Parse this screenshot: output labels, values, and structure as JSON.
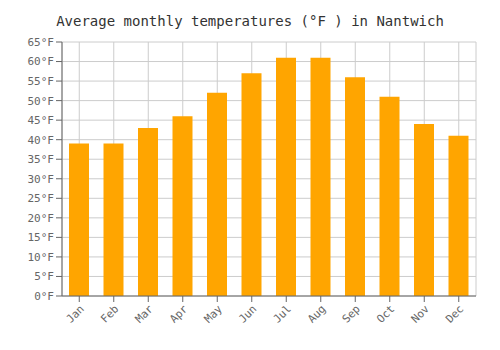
{
  "chart_data": {
    "type": "bar",
    "title": "Average monthly temperatures (°F ) in Nantwich",
    "categories": [
      "Jan",
      "Feb",
      "Mar",
      "Apr",
      "May",
      "Jun",
      "Jul",
      "Aug",
      "Sep",
      "Oct",
      "Nov",
      "Dec"
    ],
    "values": [
      39,
      39,
      43,
      46,
      52,
      57,
      61,
      61,
      56,
      51,
      44,
      41
    ],
    "color": "#FFA500",
    "ylim": [
      0,
      65
    ],
    "yticks": [
      {
        "value": 0,
        "label": "0°F"
      },
      {
        "value": 5,
        "label": "5°F"
      },
      {
        "value": 10,
        "label": "10°F"
      },
      {
        "value": 15,
        "label": "15°F"
      },
      {
        "value": 20,
        "label": "20°F"
      },
      {
        "value": 25,
        "label": "25°F"
      },
      {
        "value": 30,
        "label": "30°F"
      },
      {
        "value": 35,
        "label": "35°F"
      },
      {
        "value": 40,
        "label": "40°F"
      },
      {
        "value": 45,
        "label": "45°F"
      },
      {
        "value": 50,
        "label": "50°F"
      },
      {
        "value": 55,
        "label": "55°F"
      },
      {
        "value": 60,
        "label": "60°F"
      },
      {
        "value": 65,
        "label": "65°F"
      }
    ],
    "grid": true
  }
}
